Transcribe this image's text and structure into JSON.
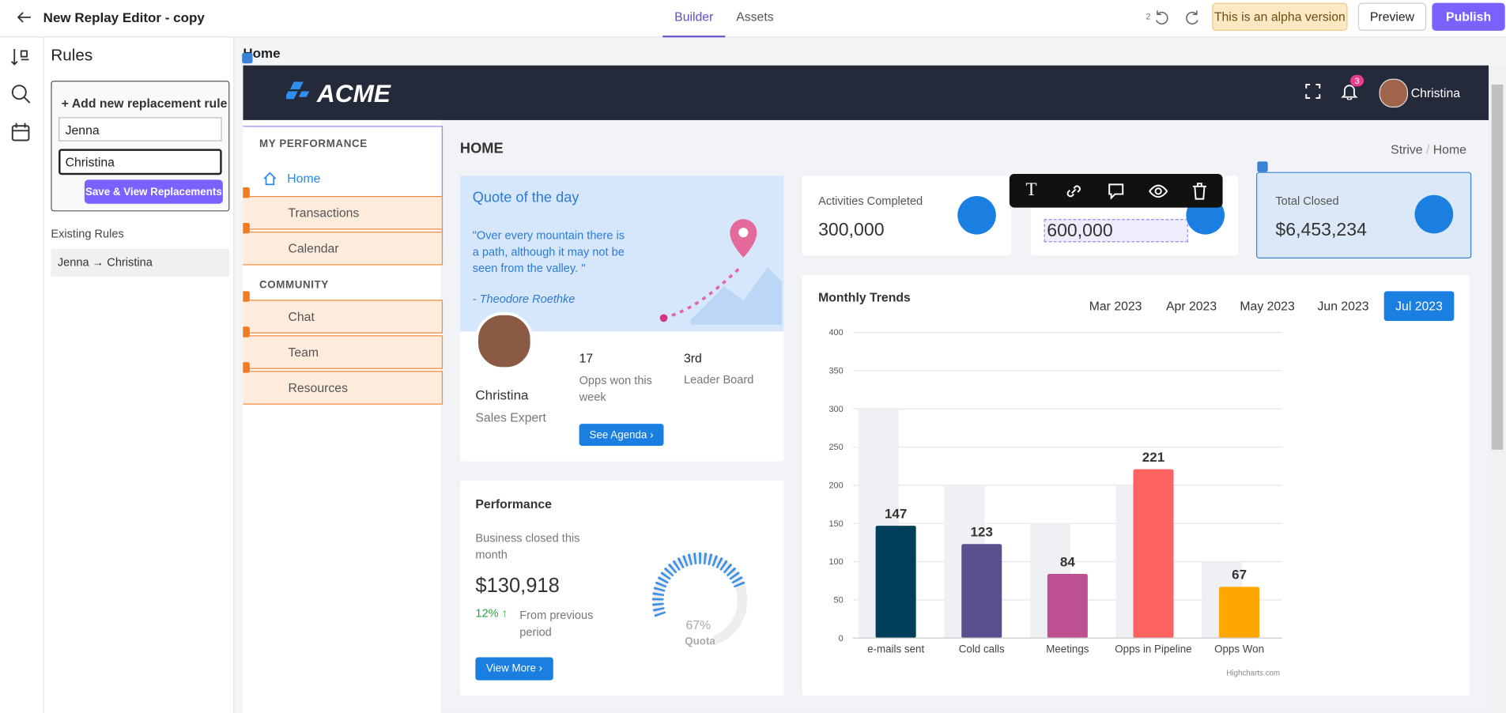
{
  "topbar": {
    "title": "New Replay Editor - copy",
    "tabs": [
      "Builder",
      "Assets"
    ],
    "undo_count": "2",
    "alpha": "This is an alpha version",
    "preview": "Preview",
    "publish": "Publish"
  },
  "rules_panel": {
    "title": "Rules",
    "add_rule": "+ Add new replacement rule",
    "from_value": "Jenna",
    "to_value": "Christina",
    "save": "Save & View Replacements",
    "existing_title": "Existing Rules",
    "existing": [
      "Jenna → Christina"
    ]
  },
  "page_label": "Home",
  "app": {
    "logo": "ACME",
    "notifications": "3",
    "user": "Christina",
    "nav_sections": [
      {
        "title": "MY PERFORMANCE",
        "items": [
          "Home",
          "Transactions",
          "Calendar"
        ]
      },
      {
        "title": "COMMUNITY",
        "items": [
          "Chat",
          "Team",
          "Resources"
        ]
      }
    ],
    "page_title": "HOME",
    "breadcrumb": [
      "Strive",
      "Home"
    ],
    "quote": {
      "title": "Quote of the day",
      "text": "\"Over every mountain there is a path, although it may not be seen from the valley. \"",
      "author": "- Theodore Roethke"
    },
    "profile": {
      "name": "Christina",
      "role": "Sales Expert",
      "stats": [
        {
          "value": "17",
          "label": "Opps won this week"
        },
        {
          "value": "3rd",
          "label": "Leader Board"
        }
      ],
      "button": "See Agenda"
    },
    "performance": {
      "title": "Performance",
      "label": "Business closed this month",
      "amount": "$130,918",
      "change": "12%",
      "change_label": "From previous period",
      "gauge": {
        "value": 67,
        "value_label": "67%",
        "label": "Quota"
      },
      "button": "View More"
    },
    "kpis": [
      {
        "label": "Activities Completed",
        "value": "300,000"
      },
      {
        "value": "600,000"
      },
      {
        "label": "Total Closed",
        "value": "$6,453,234"
      }
    ],
    "monthly_trends": {
      "type": "bar",
      "title": "Monthly Trends",
      "months": [
        "Mar 2023",
        "Apr 2023",
        "May 2023",
        "Jun 2023",
        "Jul 2023"
      ],
      "active_month": 4,
      "categories": [
        "e-mails sent",
        "Cold calls",
        "Meetings",
        "Opps in Pipeline",
        "Opps Won"
      ],
      "values": [
        147,
        123,
        84,
        221,
        67
      ],
      "colors": [
        "#003f5c",
        "#58508d",
        "#bc5090",
        "#ff6361",
        "#ffa600"
      ],
      "background_values": [
        300,
        200,
        150,
        200,
        100
      ],
      "background_color": "#eef0f4",
      "ylim": [
        0,
        400
      ],
      "yticks": [
        0,
        50,
        100,
        150,
        200,
        250,
        300,
        350,
        400
      ],
      "grid": true,
      "credit": "Highcharts.com"
    }
  }
}
